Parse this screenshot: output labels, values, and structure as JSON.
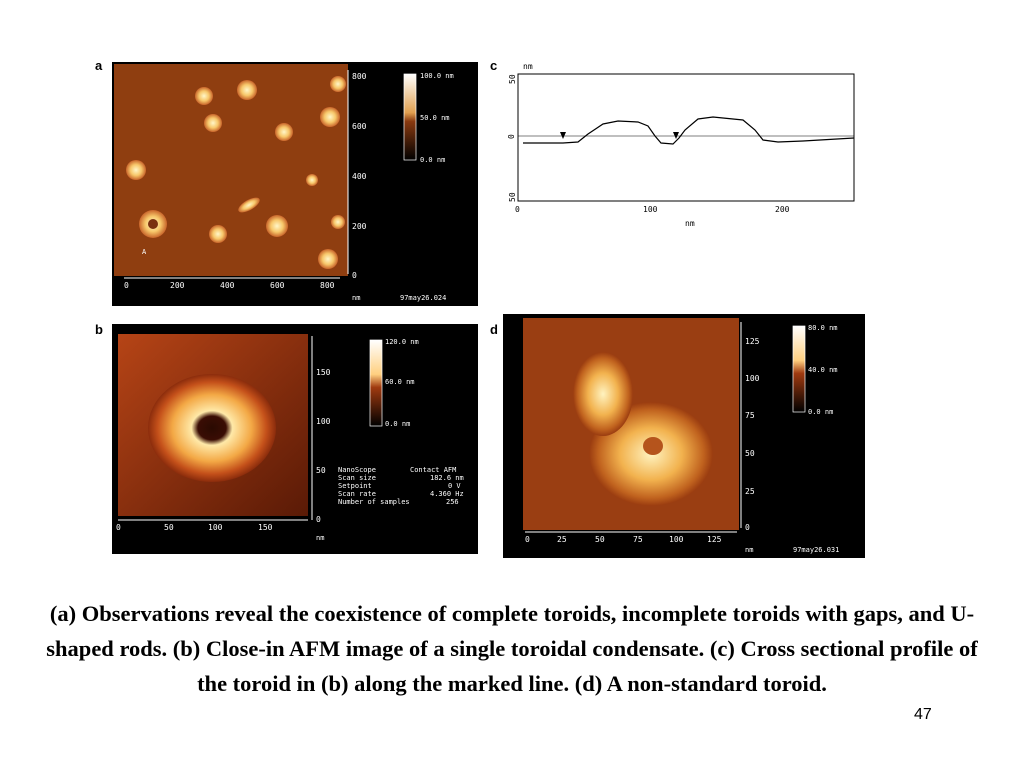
{
  "panels": {
    "a": {
      "letter": "a",
      "x_ticks": [
        "0",
        "200",
        "400",
        "600",
        "800"
      ],
      "y_ticks": [
        "800",
        "600",
        "400",
        "200",
        "0"
      ],
      "unit": "nm",
      "scale": [
        "100.0 nm",
        "50.0 nm",
        "0.0 nm"
      ],
      "file_label": "97may26.024",
      "corner_mark": "A"
    },
    "b": {
      "letter": "b",
      "x_ticks": [
        "0",
        "50",
        "100",
        "150"
      ],
      "y_ticks": [
        "150",
        "100",
        "50",
        "0"
      ],
      "unit": "nm",
      "scale": [
        "120.0 nm",
        "60.0 nm",
        "0.0 nm"
      ],
      "info_rows": [
        {
          "label": "NanoScope",
          "value": "Contact AFM"
        },
        {
          "label": "Scan size",
          "value": "182.6 nm"
        },
        {
          "label": "Setpoint",
          "value": "0 V"
        },
        {
          "label": "Scan rate",
          "value": "4.360 Hz"
        },
        {
          "label": "Number of samples",
          "value": "256"
        }
      ]
    },
    "c": {
      "letter": "c",
      "y_unit": "nm",
      "y_ticks": [
        "50",
        "0",
        "50"
      ],
      "x_ticks": [
        "0",
        "100",
        "200"
      ],
      "x_unit": "nm"
    },
    "d": {
      "letter": "d",
      "x_ticks": [
        "0",
        "25",
        "50",
        "75",
        "100",
        "125"
      ],
      "y_ticks": [
        "125",
        "100",
        "75",
        "50",
        "25",
        "0"
      ],
      "unit": "nm",
      "scale": [
        "80.0 nm",
        "40.0 nm",
        "0.0 nm"
      ],
      "file_label": "97may26.031"
    }
  },
  "caption": "(a) Observations reveal the coexistence of complete toroids, incomplete toroids with gaps, and U-shaped rods. (b) Close-in AFM image of a single toroidal condensate. (c) Cross sectional profile of the toroid in (b) along the marked line. (d) A non-standard toroid.",
  "slide_number": "47"
}
